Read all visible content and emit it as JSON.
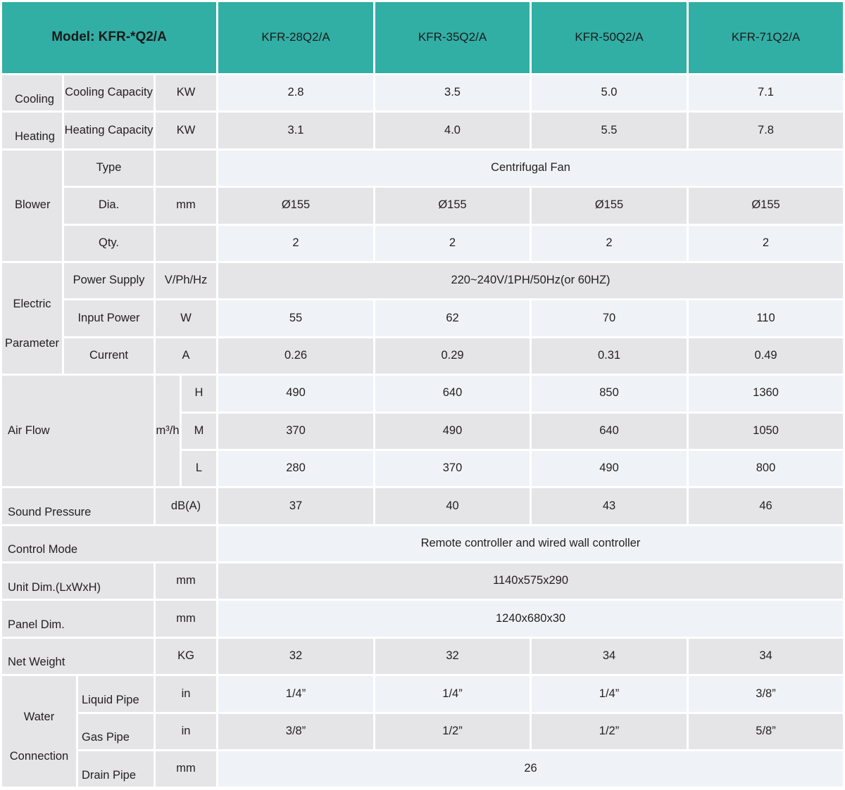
{
  "colors": {
    "teal": "#31afa5",
    "cell_gray": "#e5e4e6",
    "cell_blue": "#eff3f7",
    "gap_white": "#ffffff",
    "text": "#231f20"
  },
  "header": {
    "model_label": "Model: KFR-*Q2/A",
    "columns": [
      "KFR-28Q2/A",
      "KFR-35Q2/A",
      "KFR-50Q2/A",
      "KFR-71Q2/A"
    ]
  },
  "rows": {
    "cooling": {
      "group": "Cooling",
      "label": "Cooling Capacity",
      "unit": "KW",
      "values": [
        "2.8",
        "3.5",
        "5.0",
        "7.1"
      ]
    },
    "heating": {
      "group": "Heating",
      "label": "Heating Capacity",
      "unit": "KW",
      "values": [
        "3.1",
        "4.0",
        "5.5",
        "7.8"
      ]
    },
    "blower": {
      "group": "Blower",
      "type": {
        "label": "Type",
        "value": "Centrifugal Fan"
      },
      "dia": {
        "label": "Dia.",
        "unit": "mm",
        "values": [
          "Ø155",
          "Ø155",
          "Ø155",
          "Ø155"
        ]
      },
      "qty": {
        "label": "Qty.",
        "values": [
          "2",
          "2",
          "2",
          "2"
        ]
      }
    },
    "electric": {
      "group_line1": "Electric",
      "group_line2": "Parameter",
      "power_supply": {
        "label": "Power Supply",
        "unit": "V/Ph/Hz",
        "value": "220~240V/1PH/50Hz(or 60HZ)"
      },
      "input_power": {
        "label": "Input Power",
        "unit": "W",
        "values": [
          "55",
          "62",
          "70",
          "110"
        ]
      },
      "current": {
        "label": "Current",
        "unit": "A",
        "values": [
          "0.26",
          "0.29",
          "0.31",
          "0.49"
        ]
      }
    },
    "air_flow": {
      "group": "Air Flow",
      "unit": "m³/h",
      "h": {
        "label": "H",
        "values": [
          "490",
          "640",
          "850",
          "1360"
        ]
      },
      "m": {
        "label": "M",
        "values": [
          "370",
          "490",
          "640",
          "1050"
        ]
      },
      "l": {
        "label": "L",
        "values": [
          "280",
          "370",
          "490",
          "800"
        ]
      }
    },
    "sound": {
      "label": "Sound Pressure",
      "unit": "dB(A)",
      "values": [
        "37",
        "40",
        "43",
        "46"
      ]
    },
    "control": {
      "label": "Control Mode",
      "value": "Remote controller and wired wall controller"
    },
    "unit_dim": {
      "label": "Unit Dim.(LxWxH)",
      "unit": "mm",
      "value": "1140x575x290"
    },
    "panel_dim": {
      "label": "Panel Dim.",
      "unit": "mm",
      "value": "1240x680x30"
    },
    "net_weight": {
      "label": "Net Weight",
      "unit": "KG",
      "values": [
        "32",
        "32",
        "34",
        "34"
      ]
    },
    "water": {
      "group_line1": "Water",
      "group_line2": "Connection",
      "liquid": {
        "label": "Liquid Pipe",
        "unit": "in",
        "values": [
          "1/4”",
          "1/4”",
          "1/4”",
          "3/8”"
        ]
      },
      "gas": {
        "label": "Gas Pipe",
        "unit": "in",
        "values": [
          "3/8”",
          "1/2”",
          "1/2”",
          "5/8”"
        ]
      },
      "drain": {
        "label": "Drain Pipe",
        "unit": "mm",
        "value": "26"
      }
    }
  }
}
